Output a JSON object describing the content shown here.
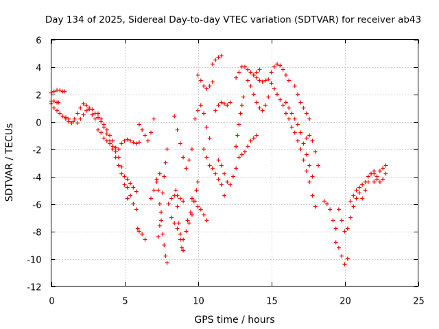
{
  "chart_data": {
    "type": "scatter",
    "title": "Day 134 of 2025, Sidereal Day-to-day VTEC variation (SDTVAR) for receiver ab43",
    "xlabel": "GPS time / hours",
    "ylabel": "SDTVAR / TECUs",
    "xlim": [
      0,
      25
    ],
    "ylim": [
      -12,
      6
    ],
    "xticks": [
      0,
      5,
      10,
      15,
      20,
      25
    ],
    "yticks": [
      -12,
      -10,
      -8,
      -6,
      -4,
      -2,
      0,
      2,
      4,
      6
    ],
    "xtick_labels": [
      "0",
      "5",
      "10",
      "15",
      "20",
      "25"
    ],
    "ytick_labels": [
      "-12",
      "-10",
      "-8",
      "-6",
      "-4",
      "-2",
      "0",
      "2",
      "4",
      "6"
    ],
    "grid": true,
    "marker": "+",
    "color": "#ff0000",
    "series": [
      {
        "name": "s1",
        "x": [
          0.0,
          0.2,
          0.4,
          0.6,
          0.8,
          1.0,
          1.2,
          1.5,
          1.8,
          2.0,
          2.2,
          2.4,
          2.6,
          2.8,
          3.0,
          3.2,
          3.4,
          3.6,
          3.8,
          4.0,
          4.2,
          4.4,
          4.6,
          4.8,
          5.0,
          5.2
        ],
        "y": [
          1.3,
          1.0,
          0.8,
          0.6,
          0.4,
          0.3,
          0.2,
          0.0,
          -0.1,
          0.2,
          0.5,
          0.8,
          1.0,
          0.9,
          0.6,
          0.3,
          0.0,
          -0.4,
          -0.9,
          -1.4,
          -2.0,
          -2.6,
          -3.2,
          -3.8,
          -4.6,
          -5.6
        ]
      },
      {
        "name": "s2",
        "x": [
          0.0,
          0.2,
          0.4,
          0.6,
          0.8,
          0.9
        ],
        "y": [
          2.1,
          2.2,
          2.3,
          2.3,
          2.2,
          2.2
        ]
      },
      {
        "name": "s3",
        "x": [
          0.0,
          0.2,
          0.4,
          0.5
        ],
        "y": [
          1.5,
          1.5,
          1.4,
          1.4
        ]
      },
      {
        "name": "s4",
        "x": [
          1.0,
          1.2,
          1.4,
          1.6,
          1.8,
          2.0,
          2.2,
          2.4,
          2.6,
          2.8,
          3.0
        ],
        "y": [
          0.2,
          0.0,
          -0.1,
          0.2,
          0.6,
          1.0,
          1.3,
          1.2,
          0.9,
          0.5,
          0.2
        ]
      },
      {
        "name": "s5",
        "x": [
          3.2,
          3.4,
          3.6,
          3.8,
          4.0,
          4.2,
          4.4,
          4.6,
          4.8,
          5.0,
          5.2,
          5.4,
          5.6,
          5.8
        ],
        "y": [
          0.6,
          0.2,
          -0.2,
          -0.6,
          -1.0,
          -1.4,
          -1.9,
          -2.6,
          -3.3,
          -4.0,
          -4.8,
          -5.4,
          -6.0,
          -6.4
        ]
      },
      {
        "name": "s6",
        "x": [
          3.2,
          3.4,
          3.6,
          3.8,
          4.0,
          4.2,
          4.4,
          4.6,
          4.8,
          5.0,
          5.2,
          5.4,
          5.6,
          5.8,
          6.0
        ],
        "y": [
          -0.6,
          -0.8,
          -1.2,
          -1.4,
          -1.6,
          -1.8,
          -2.2,
          -2.0,
          -1.6,
          -1.4,
          -1.3,
          -1.4,
          -1.5,
          -1.6,
          -1.5
        ]
      },
      {
        "name": "s7",
        "x": [
          5.0,
          5.2,
          5.4,
          5.6,
          5.8
        ],
        "y": [
          -4.0,
          -4.2,
          -4.5,
          -4.8,
          -5.1
        ]
      },
      {
        "name": "s8",
        "x": [
          5.9,
          6.0,
          6.2,
          6.4
        ],
        "y": [
          -7.8,
          -8.0,
          -8.2,
          -8.6
        ]
      },
      {
        "name": "s9",
        "x": [
          6.0,
          6.2,
          6.4,
          6.6,
          6.8,
          7.0
        ],
        "y": [
          -0.2,
          -0.6,
          -1.0,
          -1.4,
          -0.8,
          0.2
        ]
      },
      {
        "name": "s10",
        "x": [
          6.8,
          7.0,
          7.2,
          7.4
        ],
        "y": [
          -5.6,
          -5.0,
          -4.4,
          -3.8
        ]
      },
      {
        "name": "s11",
        "x": [
          7.2,
          7.3,
          7.4,
          7.5,
          7.6,
          7.7,
          7.8,
          7.9
        ],
        "y": [
          -4.2,
          -5.0,
          -6.0,
          -7.2,
          -8.2,
          -9.0,
          -9.8,
          -10.3
        ]
      },
      {
        "name": "s12",
        "x": [
          7.3,
          7.4,
          7.5,
          7.6,
          7.7,
          7.8,
          7.9
        ],
        "y": [
          -8.4,
          -7.6,
          -6.6,
          -5.2,
          -4.0,
          -3.0,
          -2.0
        ]
      },
      {
        "name": "s13",
        "x": [
          8.0,
          8.2,
          8.4,
          8.6,
          8.8,
          9.0
        ],
        "y": [
          -6.0,
          -5.6,
          -5.4,
          -5.4,
          -5.6,
          -5.8
        ]
      },
      {
        "name": "s14",
        "x": [
          8.2,
          8.4,
          8.6,
          8.8,
          9.0,
          9.2,
          9.4,
          9.6
        ],
        "y": [
          -7.0,
          -7.4,
          -7.8,
          -8.2,
          -8.6,
          -8.0,
          -7.4,
          -6.8
        ]
      },
      {
        "name": "s15",
        "x": [
          8.5,
          8.6,
          8.7,
          8.8,
          8.9,
          9.0
        ],
        "y": [
          -5.0,
          -6.2,
          -7.4,
          -8.6,
          -9.2,
          -9.4
        ]
      },
      {
        "name": "s16",
        "x": [
          8.4,
          8.6,
          8.8,
          9.0,
          9.2,
          9.4,
          9.6
        ],
        "y": [
          0.4,
          -0.6,
          -1.6,
          -2.6,
          -3.4,
          -2.8,
          -2.0
        ]
      },
      {
        "name": "s17",
        "x": [
          9.6,
          9.8,
          10.0,
          10.2,
          10.4,
          10.6
        ],
        "y": [
          -5.6,
          -5.8,
          -6.2,
          -6.4,
          -6.8,
          -7.2
        ]
      },
      {
        "name": "s18",
        "x": [
          9.3,
          9.5,
          9.7,
          9.9,
          10.0
        ],
        "y": [
          -7.2,
          -6.6,
          -5.8,
          -5.0,
          -4.4
        ]
      },
      {
        "name": "s19",
        "x": [
          9.8,
          10.0,
          10.2,
          10.4,
          10.6,
          10.8
        ],
        "y": [
          0.2,
          0.8,
          1.2,
          0.6,
          -0.4,
          -1.2
        ]
      },
      {
        "name": "s20",
        "x": [
          10.0,
          10.2,
          10.4,
          10.6,
          10.8,
          11.0
        ],
        "y": [
          3.4,
          3.0,
          2.6,
          2.4,
          2.6,
          2.9
        ]
      },
      {
        "name": "s21",
        "x": [
          10.4,
          10.6,
          10.8,
          11.0,
          11.2,
          11.4,
          11.6,
          11.8
        ],
        "y": [
          -2.0,
          -2.6,
          -3.2,
          -3.4,
          -3.8,
          -4.2,
          -4.6,
          -5.4
        ]
      },
      {
        "name": "s22",
        "x": [
          11.0,
          11.2,
          11.4,
          11.6
        ],
        "y": [
          4.2,
          4.5,
          4.7,
          4.8
        ]
      },
      {
        "name": "s23",
        "x": [
          11.2,
          11.4,
          11.6,
          11.8,
          12.0,
          12.2
        ],
        "y": [
          0.8,
          1.2,
          1.4,
          1.3,
          1.2,
          1.4
        ]
      },
      {
        "name": "s24",
        "x": [
          11.4,
          11.6,
          11.8,
          12.0,
          12.2,
          12.4,
          12.6
        ],
        "y": [
          -2.8,
          -3.2,
          -3.8,
          -4.4,
          -4.6,
          -4.0,
          -3.4
        ]
      },
      {
        "name": "s25",
        "x": [
          12.6,
          12.7,
          12.8,
          12.9,
          13.0,
          13.1
        ],
        "y": [
          -1.8,
          -1.0,
          -0.2,
          0.6,
          1.2,
          1.8
        ]
      },
      {
        "name": "s26",
        "x": [
          12.8,
          13.0,
          13.2,
          13.4,
          13.6,
          13.8,
          14.0
        ],
        "y": [
          -2.6,
          -2.4,
          -2.2,
          -1.8,
          -1.4,
          -1.2,
          -1.0
        ]
      },
      {
        "name": "s27",
        "x": [
          12.6,
          12.8,
          13.0,
          13.2,
          13.4,
          13.6,
          13.8,
          14.0,
          14.2
        ],
        "y": [
          3.2,
          3.6,
          4.0,
          4.0,
          3.8,
          3.6,
          3.4,
          3.6,
          3.8
        ]
      },
      {
        "name": "s28",
        "x": [
          13.4,
          13.6,
          13.8,
          14.0,
          14.2,
          14.4,
          14.6,
          14.8
        ],
        "y": [
          3.0,
          2.6,
          2.0,
          1.4,
          1.0,
          0.8,
          1.2,
          1.8
        ]
      },
      {
        "name": "s29",
        "x": [
          13.8,
          14.0,
          14.2,
          14.4,
          14.6,
          14.8,
          15.0
        ],
        "y": [
          3.4,
          3.2,
          3.0,
          2.9,
          3.0,
          3.1,
          2.8
        ]
      },
      {
        "name": "s30",
        "x": [
          15.0,
          15.2,
          15.4,
          15.6,
          15.8,
          16.0,
          16.2
        ],
        "y": [
          3.6,
          4.0,
          4.2,
          4.1,
          3.8,
          3.4,
          3.0
        ]
      },
      {
        "name": "s31",
        "x": [
          15.2,
          15.4,
          15.6,
          15.8,
          16.0,
          16.2,
          16.4,
          16.6,
          16.8,
          17.0,
          17.2,
          17.4,
          17.6,
          17.8,
          18.0
        ],
        "y": [
          2.4,
          2.0,
          1.6,
          1.2,
          0.6,
          0.2,
          -0.4,
          -0.8,
          -1.4,
          -2.0,
          -2.8,
          -3.6,
          -4.4,
          -5.4,
          -6.2
        ]
      },
      {
        "name": "s32",
        "x": [
          16.0,
          16.2,
          16.4,
          16.6,
          16.8,
          17.0,
          17.2,
          17.4,
          17.6,
          17.8
        ],
        "y": [
          1.4,
          1.0,
          0.6,
          0.2,
          -0.2,
          -0.8,
          -1.6,
          -2.4,
          -3.2,
          -4.0
        ]
      },
      {
        "name": "s33",
        "x": [
          16.6,
          16.8,
          17.0,
          17.2,
          17.4,
          17.6
        ],
        "y": [
          2.6,
          2.0,
          1.4,
          1.0,
          0.6,
          0.2
        ]
      },
      {
        "name": "s34",
        "x": [
          17.4,
          17.6,
          17.8,
          18.0,
          18.2
        ],
        "y": [
          -1.2,
          -1.0,
          -1.4,
          -2.2,
          -3.2
        ]
      },
      {
        "name": "s35",
        "x": [
          18.6,
          18.8,
          19.0,
          19.2,
          19.4
        ],
        "y": [
          -5.8,
          -6.0,
          -6.4,
          -7.2,
          -7.8
        ]
      },
      {
        "name": "s36",
        "x": [
          19.4,
          19.6,
          19.8,
          20.0,
          20.2
        ],
        "y": [
          -8.8,
          -9.2,
          -9.8,
          -10.4,
          -10.0
        ]
      },
      {
        "name": "s37",
        "x": [
          19.6,
          19.8,
          20.0,
          20.2,
          20.4,
          20.6,
          20.8,
          21.0
        ],
        "y": [
          -6.4,
          -7.2,
          -8.0,
          -7.8,
          -7.0,
          -6.2,
          -5.6,
          -5.2
        ]
      },
      {
        "name": "s38",
        "x": [
          20.4,
          20.6,
          20.8,
          21.0,
          21.2,
          21.4,
          21.6,
          21.8,
          22.0
        ],
        "y": [
          -5.8,
          -5.4,
          -5.0,
          -4.8,
          -4.6,
          -4.4,
          -4.0,
          -3.8,
          -3.6
        ]
      },
      {
        "name": "s39",
        "x": [
          21.2,
          21.4,
          21.6,
          21.8,
          22.0,
          22.2,
          22.4,
          22.6,
          22.8
        ],
        "y": [
          -5.6,
          -5.0,
          -4.4,
          -3.8,
          -3.8,
          -4.2,
          -4.4,
          -4.2,
          -3.8
        ]
      },
      {
        "name": "s40",
        "x": [
          22.0,
          22.2,
          22.4,
          22.6,
          22.8
        ],
        "y": [
          -4.4,
          -4.0,
          -3.6,
          -3.4,
          -3.2
        ]
      }
    ]
  }
}
